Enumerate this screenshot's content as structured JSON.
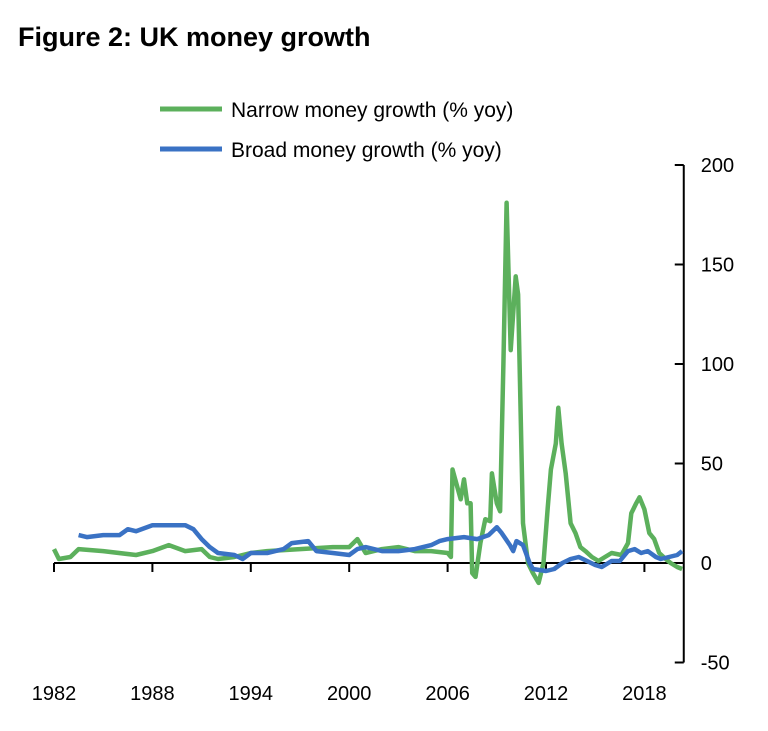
{
  "chart_data": {
    "type": "line",
    "title": "Figure 2: UK money growth",
    "xlabel": "",
    "ylabel": "",
    "xlim": [
      1982,
      2020.4
    ],
    "ylim": [
      -50,
      200
    ],
    "x_ticks": [
      "1982",
      "1988",
      "1994",
      "2000",
      "2006",
      "2012",
      "2018"
    ],
    "y_ticks": [
      "200",
      "150",
      "100",
      "50",
      "0",
      "-50"
    ],
    "y_axis_side": "right",
    "grid": false,
    "legend_position": "top-center",
    "series": [
      {
        "name": "Narrow money growth (% yoy)",
        "color": "#5cb05c",
        "points": [
          [
            1982.0,
            7
          ],
          [
            1982.3,
            2
          ],
          [
            1983.0,
            3
          ],
          [
            1983.5,
            7
          ],
          [
            1985,
            6
          ],
          [
            1987,
            4
          ],
          [
            1988,
            6
          ],
          [
            1989,
            9
          ],
          [
            1990,
            6
          ],
          [
            1991,
            7
          ],
          [
            1991.5,
            3
          ],
          [
            1992,
            2
          ],
          [
            1993,
            3
          ],
          [
            1994,
            5
          ],
          [
            1995,
            6
          ],
          [
            1997,
            7
          ],
          [
            1998,
            7.5
          ],
          [
            1999,
            8
          ],
          [
            2000,
            8
          ],
          [
            2000.5,
            12
          ],
          [
            2001,
            5
          ],
          [
            2002,
            7
          ],
          [
            2003,
            8
          ],
          [
            2004,
            6
          ],
          [
            2005,
            6
          ],
          [
            2006,
            5
          ],
          [
            2006.2,
            3
          ],
          [
            2006.3,
            47
          ],
          [
            2006.8,
            32
          ],
          [
            2007.0,
            42
          ],
          [
            2007.2,
            30
          ],
          [
            2007.4,
            30
          ],
          [
            2007.5,
            -5
          ],
          [
            2007.7,
            -7
          ],
          [
            2008,
            10
          ],
          [
            2008.3,
            22
          ],
          [
            2008.6,
            21
          ],
          [
            2008.7,
            45
          ],
          [
            2009.0,
            30
          ],
          [
            2009.2,
            26
          ],
          [
            2009.4,
            100
          ],
          [
            2009.6,
            181
          ],
          [
            2009.85,
            107
          ],
          [
            2010.15,
            144
          ],
          [
            2010.3,
            135
          ],
          [
            2010.6,
            20
          ],
          [
            2010.9,
            0
          ],
          [
            2011.2,
            -5
          ],
          [
            2011.55,
            -10
          ],
          [
            2011.85,
            0
          ],
          [
            2012.1,
            27
          ],
          [
            2012.3,
            47
          ],
          [
            2012.6,
            60
          ],
          [
            2012.75,
            78
          ],
          [
            2012.95,
            60
          ],
          [
            2013.2,
            45
          ],
          [
            2013.5,
            20
          ],
          [
            2013.8,
            15
          ],
          [
            2014.1,
            8
          ],
          [
            2014.4,
            6
          ],
          [
            2014.8,
            3
          ],
          [
            2015.2,
            1
          ],
          [
            2015.6,
            3
          ],
          [
            2016,
            5
          ],
          [
            2016.6,
            4
          ],
          [
            2017.0,
            10
          ],
          [
            2017.2,
            25
          ],
          [
            2017.5,
            30
          ],
          [
            2017.7,
            33
          ],
          [
            2018.0,
            27
          ],
          [
            2018.3,
            15
          ],
          [
            2018.6,
            12
          ],
          [
            2018.9,
            5
          ],
          [
            2019.3,
            2
          ],
          [
            2019.6,
            0
          ],
          [
            2020.0,
            -2
          ],
          [
            2020.3,
            -3
          ]
        ]
      },
      {
        "name": "Broad money growth (% yoy)",
        "color": "#3a72c4",
        "points": [
          [
            1983.5,
            14
          ],
          [
            1984,
            13
          ],
          [
            1985,
            14
          ],
          [
            1986,
            14
          ],
          [
            1986.5,
            17
          ],
          [
            1987,
            16
          ],
          [
            1988,
            19
          ],
          [
            1989,
            19
          ],
          [
            1990,
            19
          ],
          [
            1990.5,
            17
          ],
          [
            1991,
            12
          ],
          [
            1991.5,
            8
          ],
          [
            1992,
            5
          ],
          [
            1993,
            4
          ],
          [
            1993.5,
            2
          ],
          [
            1994,
            5
          ],
          [
            1995,
            5
          ],
          [
            1996,
            7
          ],
          [
            1996.5,
            10
          ],
          [
            1997.5,
            11
          ],
          [
            1998,
            6
          ],
          [
            1999,
            5
          ],
          [
            2000,
            4
          ],
          [
            2000.5,
            7
          ],
          [
            2001,
            8
          ],
          [
            2002,
            6
          ],
          [
            2003,
            6
          ],
          [
            2004,
            7
          ],
          [
            2005,
            9
          ],
          [
            2005.5,
            11
          ],
          [
            2006,
            12
          ],
          [
            2007,
            13
          ],
          [
            2007.8,
            12
          ],
          [
            2008.5,
            14
          ],
          [
            2009,
            18
          ],
          [
            2009.3,
            15
          ],
          [
            2009.8,
            9
          ],
          [
            2010,
            6
          ],
          [
            2010.2,
            11
          ],
          [
            2010.6,
            9
          ],
          [
            2011,
            0
          ],
          [
            2011.2,
            -3
          ],
          [
            2012,
            -4
          ],
          [
            2012.5,
            -3
          ],
          [
            2013,
            0
          ],
          [
            2013.5,
            2
          ],
          [
            2014,
            3
          ],
          [
            2014.5,
            1
          ],
          [
            2015,
            -1
          ],
          [
            2015.4,
            -2
          ],
          [
            2016,
            1
          ],
          [
            2016.5,
            1
          ],
          [
            2017,
            6
          ],
          [
            2017.4,
            7
          ],
          [
            2017.8,
            5
          ],
          [
            2018.2,
            6
          ],
          [
            2018.7,
            3
          ],
          [
            2019,
            2
          ],
          [
            2019.5,
            3
          ],
          [
            2020,
            4
          ],
          [
            2020.3,
            6
          ]
        ]
      }
    ]
  }
}
